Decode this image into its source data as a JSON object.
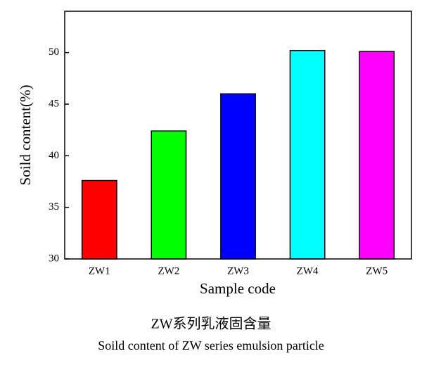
{
  "chart_data": {
    "type": "bar",
    "title": "ZW系列乳液固含量",
    "subtitle": "Soild content of ZW series emulsion particle",
    "x_label": "Sample code",
    "y_label": "Soild content(%)",
    "categories": [
      "ZW1",
      "ZW2",
      "ZW3",
      "ZW4",
      "ZW5"
    ],
    "values": [
      37.6,
      42.4,
      46.0,
      50.2,
      50.1
    ],
    "colors": [
      "#ff0000",
      "#00ff00",
      "#0000ff",
      "#00ffff",
      "#ff00ff"
    ],
    "ylim": [
      30,
      54
    ],
    "yticks": [
      30,
      35,
      40,
      45,
      50
    ],
    "grid": false
  }
}
